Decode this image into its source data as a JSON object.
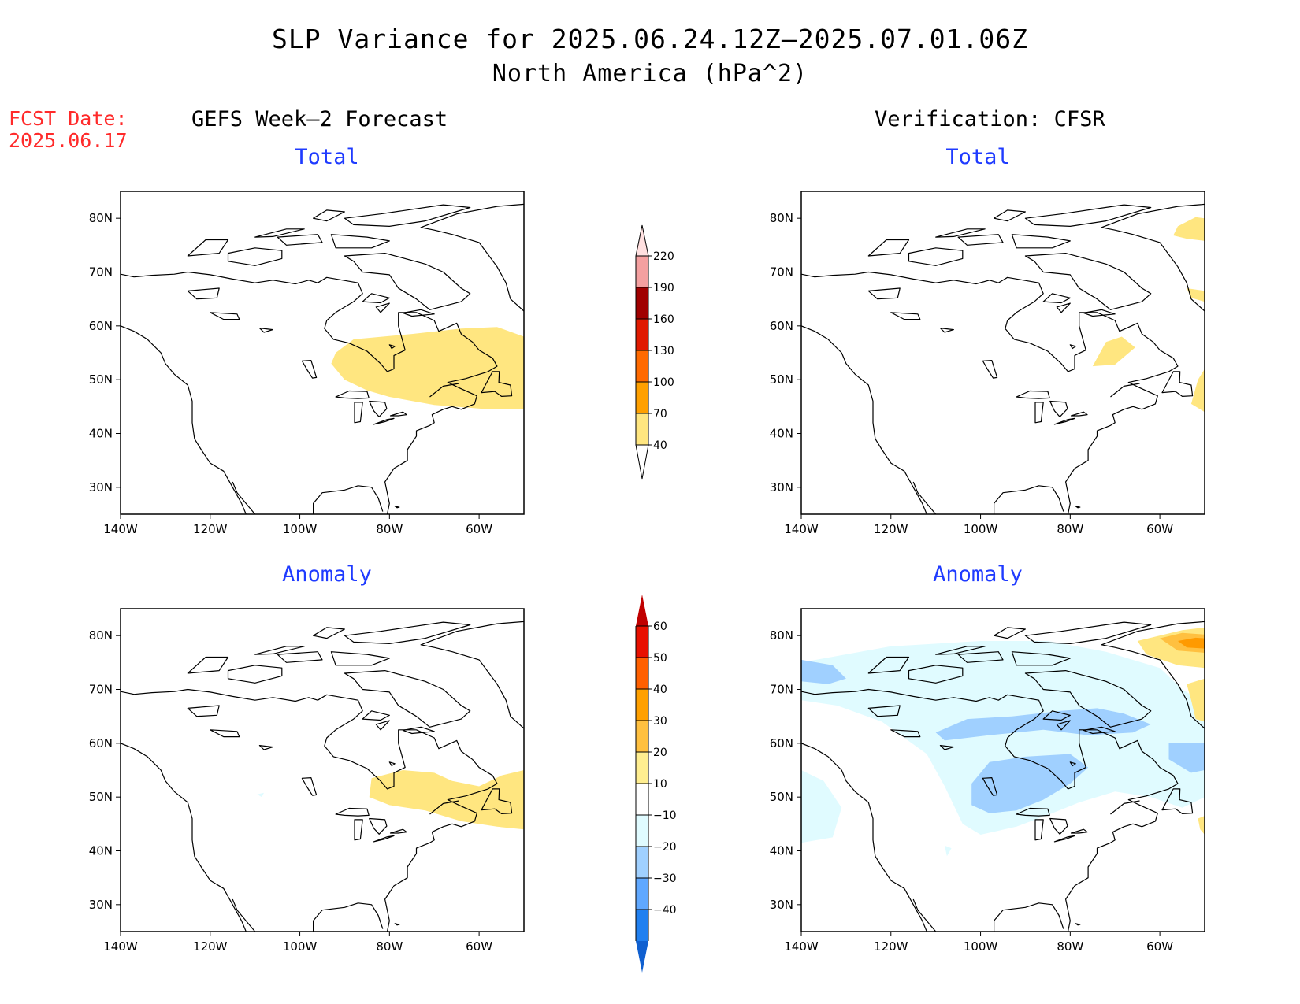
{
  "header": {
    "title": "SLP Variance for 2025.06.24.12Z–2025.07.01.06Z",
    "subtitle": "North America (hPa^2)",
    "fcst_label": "FCST Date:",
    "fcst_date": "2025.06.17"
  },
  "columns": {
    "left": "GEFS Week–2 Forecast",
    "right": "Verification: CFSR"
  },
  "panels": {
    "tl": {
      "title": "Total"
    },
    "tr": {
      "title": "Total"
    },
    "bl": {
      "title": "Anomaly"
    },
    "br": {
      "title": "Anomaly"
    }
  },
  "axes": {
    "lat_labels": [
      "80N",
      "70N",
      "60N",
      "50N",
      "40N",
      "30N"
    ],
    "lon_labels": [
      "140W",
      "120W",
      "100W",
      "80W",
      "60W"
    ],
    "lat_values": [
      80,
      70,
      60,
      50,
      40,
      30
    ],
    "lon_values": [
      -140,
      -120,
      -100,
      -80,
      -60
    ],
    "lat_range": [
      25,
      85
    ],
    "lon_range": [
      -140,
      -50
    ]
  },
  "colorbars": {
    "total": {
      "labels": [
        "40",
        "70",
        "100",
        "130",
        "160",
        "190",
        "220"
      ],
      "colors": [
        "#ffe680",
        "#ffa000",
        "#ff6a00",
        "#e01a00",
        "#a00000",
        "#f4a0a0",
        "#ffe0e0"
      ]
    },
    "anomaly": {
      "labels": [
        "60",
        "50",
        "40",
        "30",
        "20",
        "10",
        "−10",
        "−20",
        "−30",
        "−40"
      ],
      "colors": [
        "#c00000",
        "#e81000",
        "#ff6000",
        "#ffa000",
        "#ffc040",
        "#ffee90",
        "#ffffff",
        "#e0fbff",
        "#a0d0ff",
        "#60a8ff",
        "#2080f0",
        "#1060d0"
      ]
    }
  },
  "colors": {
    "panel_title": "#1f3bff",
    "fcst_text": "#ff2a2a",
    "pos_light": "#ffe680",
    "pos_mid": "#ffc040",
    "pos_strong": "#ff9a00",
    "neg_light": "#e0fbff",
    "neg_mid": "#a0d0ff"
  }
}
